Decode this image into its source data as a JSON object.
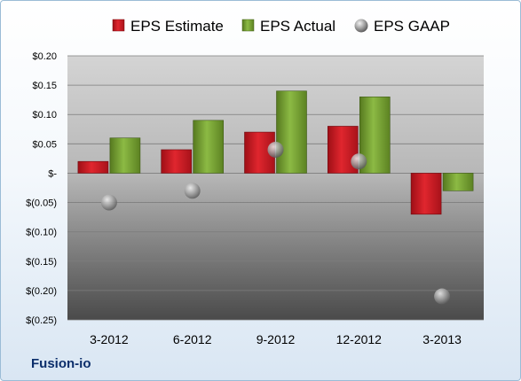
{
  "footer": {
    "company": "Fusion-io"
  },
  "colors": {
    "estimate": "#c8161e",
    "actual": "#6f9b2c",
    "gaap": "#9a9a9a"
  },
  "chart_data": {
    "type": "bar",
    "title": "",
    "xlabel": "",
    "ylabel": "",
    "categories": [
      "3-2012",
      "6-2012",
      "9-2012",
      "12-2012",
      "3-2013"
    ],
    "series": [
      {
        "name": "EPS Estimate",
        "kind": "bar",
        "values": [
          0.02,
          0.04,
          0.07,
          0.08,
          -0.07
        ]
      },
      {
        "name": "EPS Actual",
        "kind": "bar",
        "values": [
          0.06,
          0.09,
          0.14,
          0.13,
          -0.03
        ]
      },
      {
        "name": "EPS GAAP",
        "kind": "marker",
        "values": [
          -0.05,
          -0.03,
          0.04,
          0.02,
          -0.21
        ]
      }
    ],
    "ylim": [
      -0.25,
      0.2
    ],
    "yticks": [
      0.2,
      0.15,
      0.1,
      0.05,
      0,
      -0.05,
      -0.1,
      -0.15,
      -0.2,
      -0.25
    ],
    "ytick_labels": [
      "$0.20",
      "$0.15",
      "$0.10",
      "$0.05",
      "$-",
      "$(0.05)",
      "$(0.10)",
      "$(0.15)",
      "$(0.20)",
      "$(0.25)"
    ],
    "grid": true,
    "legend": "top"
  }
}
